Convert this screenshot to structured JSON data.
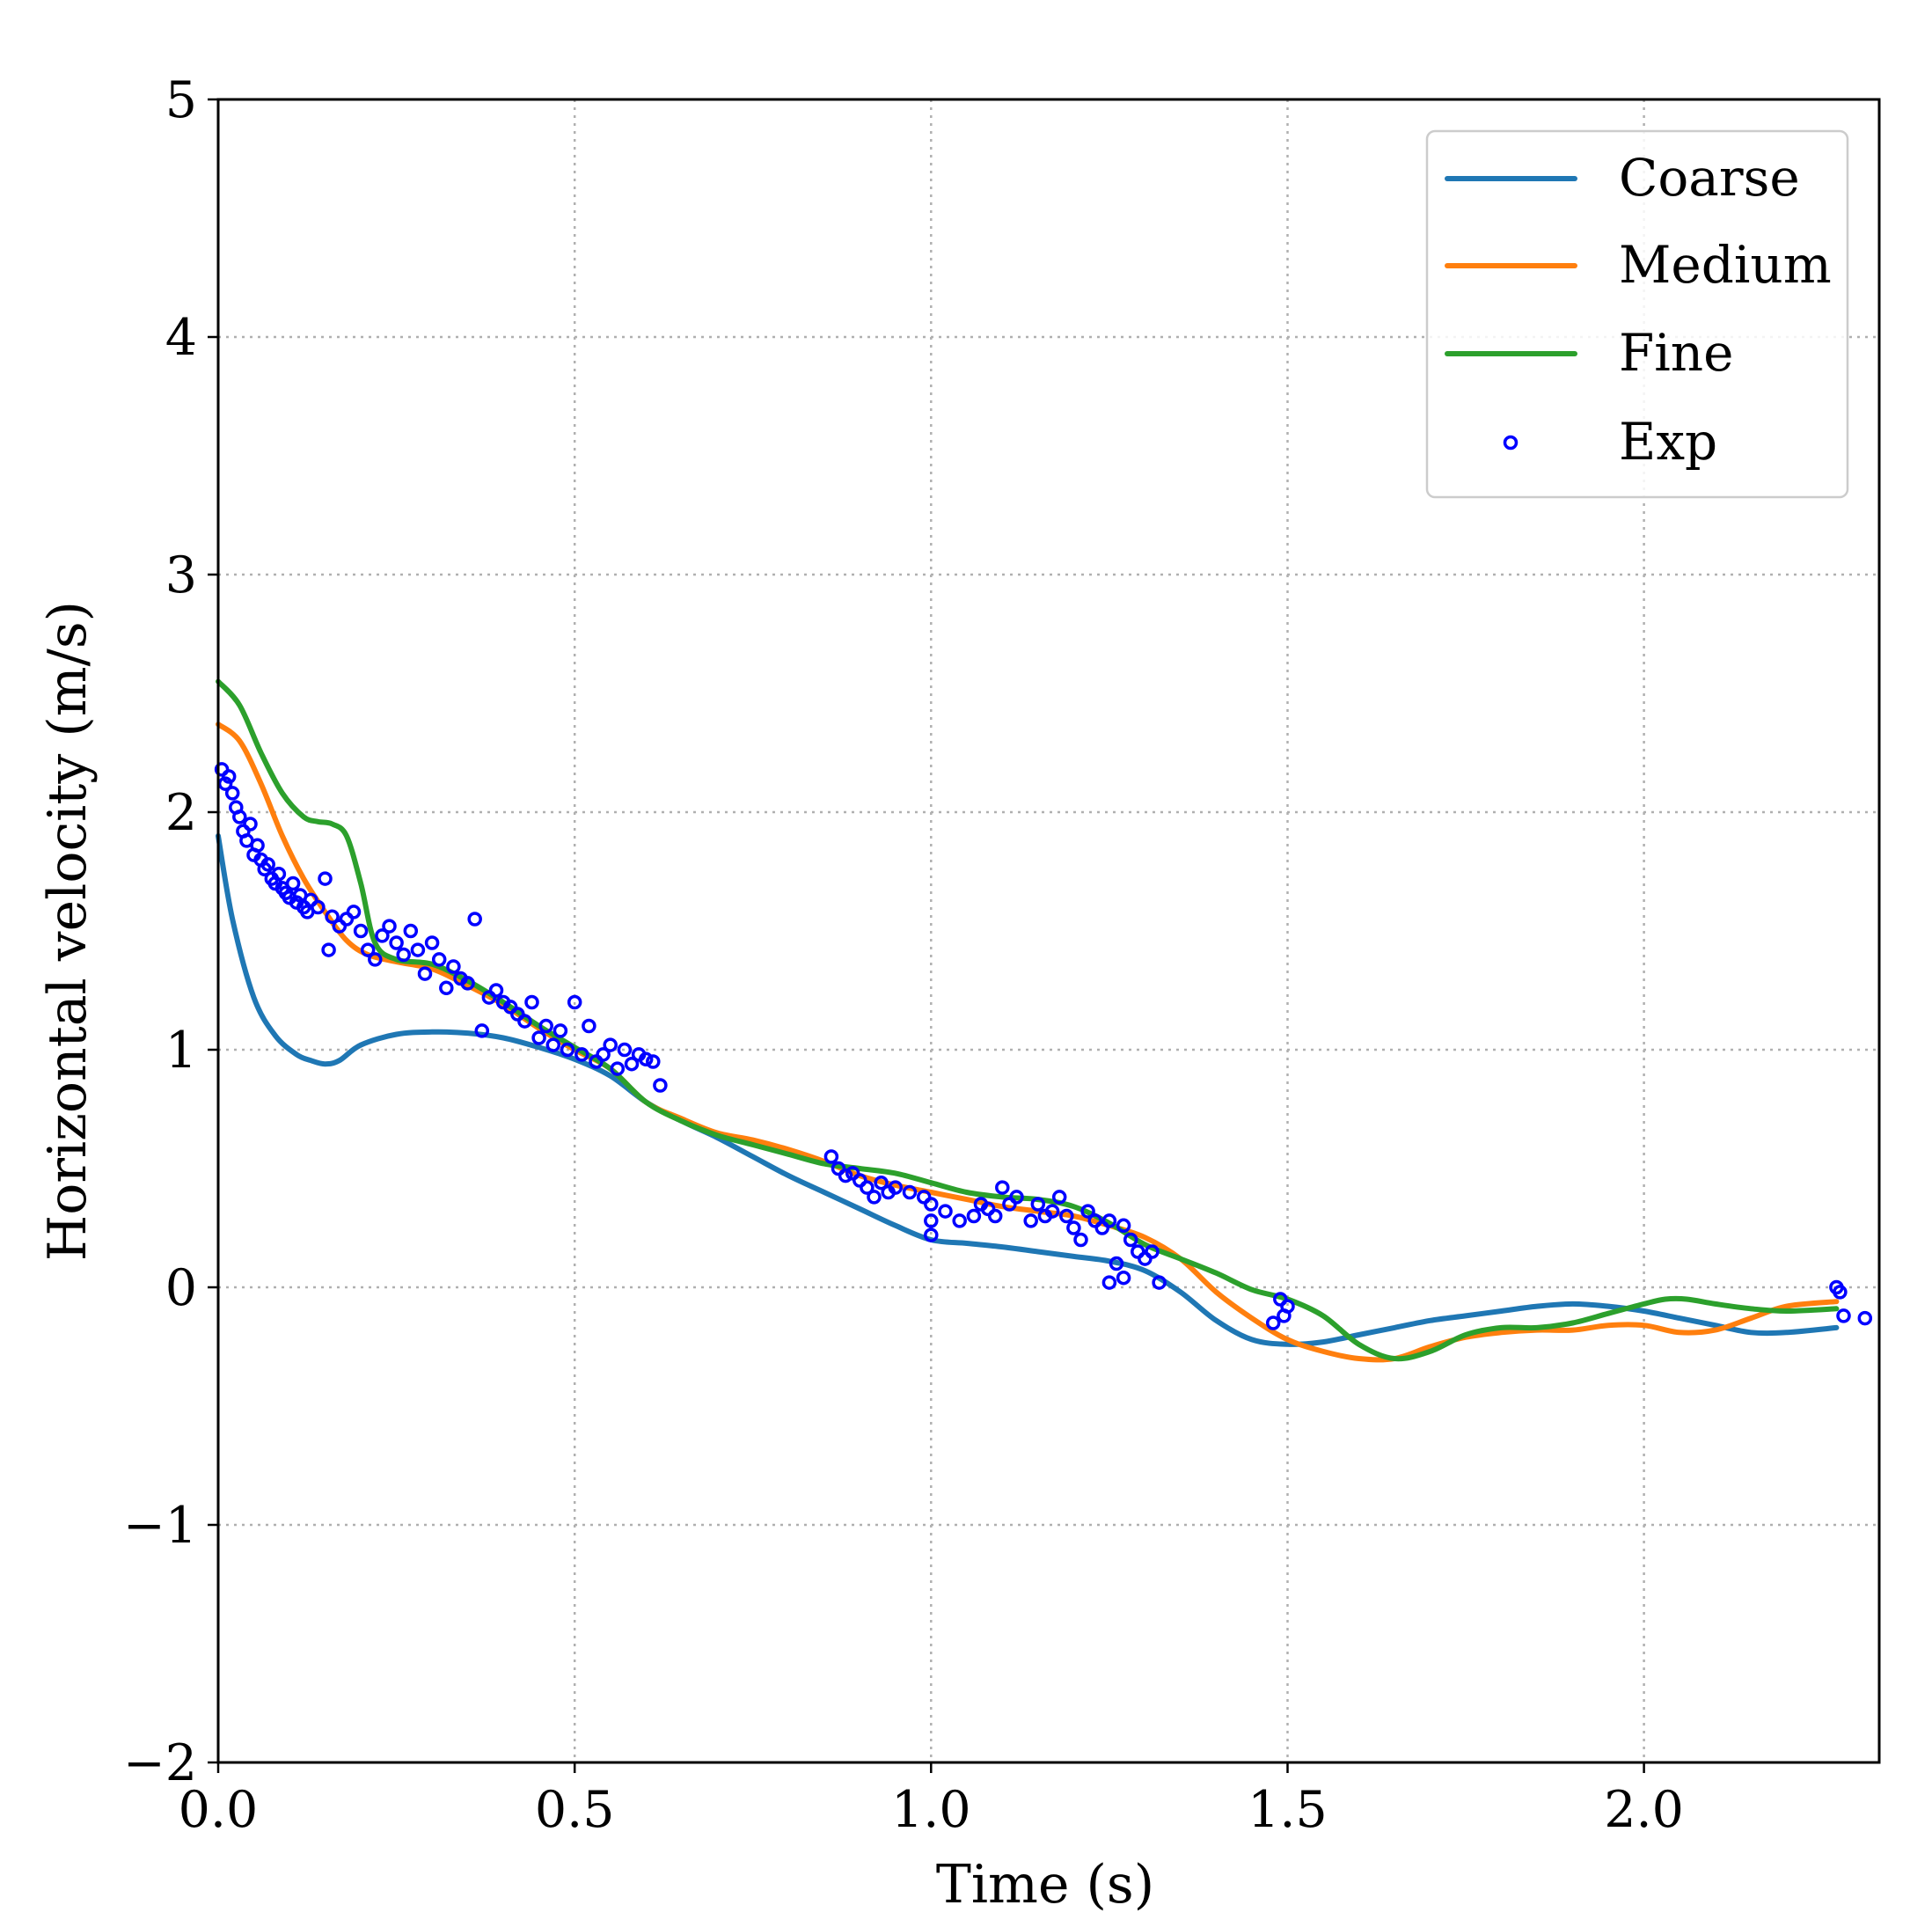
{
  "chart_data": {
    "type": "line",
    "title": "",
    "xlabel": "Time (s)",
    "ylabel": "Horizontal velocity (m/s)",
    "xlim": [
      0.0,
      2.33
    ],
    "ylim": [
      -2,
      5
    ],
    "x_ticks": [
      0.0,
      0.5,
      1.0,
      1.5,
      2.0
    ],
    "x_tick_labels": [
      "0.0",
      "0.5",
      "1.0",
      "1.5",
      "2.0"
    ],
    "y_ticks": [
      -2,
      -1,
      0,
      1,
      2,
      3,
      4,
      5
    ],
    "y_tick_labels": [
      "−2",
      "−1",
      "0",
      "1",
      "2",
      "3",
      "4",
      "5"
    ],
    "grid": true,
    "legend_position": "top-right",
    "series": [
      {
        "name": "Coarse",
        "color": "#1f77b4",
        "style": "line",
        "x": [
          0.0,
          0.02,
          0.05,
          0.08,
          0.11,
          0.13,
          0.15,
          0.17,
          0.2,
          0.25,
          0.3,
          0.35,
          0.4,
          0.45,
          0.5,
          0.55,
          0.6,
          0.65,
          0.7,
          0.75,
          0.8,
          0.85,
          0.9,
          0.95,
          1.0,
          1.05,
          1.1,
          1.15,
          1.2,
          1.25,
          1.3,
          1.35,
          1.4,
          1.45,
          1.5,
          1.55,
          1.6,
          1.65,
          1.7,
          1.75,
          1.8,
          1.85,
          1.9,
          1.95,
          2.0,
          2.05,
          2.1,
          2.15,
          2.2,
          2.27
        ],
        "y": [
          1.9,
          1.55,
          1.22,
          1.06,
          0.98,
          0.955,
          0.94,
          0.955,
          1.02,
          1.065,
          1.075,
          1.07,
          1.05,
          1.01,
          0.96,
          0.89,
          0.78,
          0.7,
          0.63,
          0.55,
          0.47,
          0.4,
          0.33,
          0.26,
          0.2,
          0.185,
          0.17,
          0.15,
          0.13,
          0.11,
          0.07,
          -0.02,
          -0.14,
          -0.22,
          -0.24,
          -0.23,
          -0.2,
          -0.17,
          -0.14,
          -0.12,
          -0.1,
          -0.08,
          -0.07,
          -0.08,
          -0.1,
          -0.13,
          -0.16,
          -0.19,
          -0.19,
          -0.17
        ]
      },
      {
        "name": "Medium",
        "color": "#ff7f0e",
        "style": "line",
        "x": [
          0.0,
          0.03,
          0.06,
          0.09,
          0.12,
          0.15,
          0.18,
          0.21,
          0.25,
          0.3,
          0.35,
          0.4,
          0.45,
          0.5,
          0.55,
          0.6,
          0.65,
          0.7,
          0.75,
          0.8,
          0.85,
          0.9,
          0.95,
          1.0,
          1.05,
          1.1,
          1.15,
          1.2,
          1.25,
          1.3,
          1.35,
          1.4,
          1.45,
          1.5,
          1.55,
          1.6,
          1.65,
          1.7,
          1.75,
          1.8,
          1.85,
          1.9,
          1.95,
          2.0,
          2.05,
          2.1,
          2.15,
          2.2,
          2.27
        ],
        "y": [
          2.37,
          2.3,
          2.12,
          1.9,
          1.72,
          1.58,
          1.46,
          1.4,
          1.37,
          1.34,
          1.27,
          1.19,
          1.09,
          1.0,
          0.92,
          0.78,
          0.71,
          0.65,
          0.62,
          0.58,
          0.53,
          0.47,
          0.43,
          0.4,
          0.37,
          0.34,
          0.32,
          0.3,
          0.26,
          0.21,
          0.12,
          -0.02,
          -0.13,
          -0.22,
          -0.27,
          -0.3,
          -0.3,
          -0.25,
          -0.21,
          -0.19,
          -0.18,
          -0.18,
          -0.16,
          -0.16,
          -0.19,
          -0.18,
          -0.13,
          -0.08,
          -0.06
        ]
      },
      {
        "name": "Fine",
        "color": "#2ca02c",
        "style": "line",
        "x": [
          0.0,
          0.03,
          0.06,
          0.09,
          0.12,
          0.14,
          0.16,
          0.18,
          0.2,
          0.22,
          0.25,
          0.3,
          0.35,
          0.4,
          0.45,
          0.5,
          0.55,
          0.6,
          0.65,
          0.7,
          0.75,
          0.8,
          0.85,
          0.9,
          0.95,
          1.0,
          1.05,
          1.1,
          1.15,
          1.2,
          1.25,
          1.3,
          1.35,
          1.4,
          1.45,
          1.5,
          1.55,
          1.6,
          1.65,
          1.7,
          1.75,
          1.8,
          1.85,
          1.9,
          1.95,
          2.0,
          2.03,
          2.06,
          2.1,
          2.15,
          2.2,
          2.27
        ],
        "y": [
          2.55,
          2.45,
          2.25,
          2.08,
          1.98,
          1.96,
          1.95,
          1.9,
          1.7,
          1.45,
          1.38,
          1.36,
          1.29,
          1.2,
          1.1,
          1.01,
          0.92,
          0.78,
          0.7,
          0.64,
          0.6,
          0.56,
          0.52,
          0.5,
          0.48,
          0.44,
          0.4,
          0.38,
          0.37,
          0.34,
          0.27,
          0.18,
          0.12,
          0.06,
          -0.01,
          -0.05,
          -0.12,
          -0.24,
          -0.3,
          -0.27,
          -0.2,
          -0.17,
          -0.17,
          -0.15,
          -0.11,
          -0.07,
          -0.05,
          -0.05,
          -0.07,
          -0.09,
          -0.1,
          -0.09
        ]
      },
      {
        "name": "Exp",
        "color": "#0000ff",
        "style": "markers",
        "x": [
          0.005,
          0.01,
          0.015,
          0.02,
          0.025,
          0.03,
          0.035,
          0.04,
          0.045,
          0.05,
          0.055,
          0.06,
          0.065,
          0.07,
          0.075,
          0.08,
          0.085,
          0.09,
          0.095,
          0.1,
          0.105,
          0.11,
          0.115,
          0.12,
          0.125,
          0.13,
          0.14,
          0.15,
          0.155,
          0.16,
          0.17,
          0.18,
          0.19,
          0.2,
          0.21,
          0.22,
          0.23,
          0.24,
          0.25,
          0.26,
          0.27,
          0.28,
          0.29,
          0.3,
          0.31,
          0.32,
          0.33,
          0.34,
          0.35,
          0.36,
          0.37,
          0.38,
          0.39,
          0.4,
          0.41,
          0.42,
          0.43,
          0.44,
          0.45,
          0.46,
          0.47,
          0.48,
          0.49,
          0.5,
          0.51,
          0.52,
          0.53,
          0.54,
          0.55,
          0.56,
          0.57,
          0.58,
          0.59,
          0.6,
          0.61,
          0.62,
          0.86,
          0.87,
          0.88,
          0.89,
          0.9,
          0.91,
          0.92,
          0.93,
          0.94,
          0.95,
          0.97,
          0.99,
          1.0,
          1.0,
          1.0,
          1.02,
          1.04,
          1.06,
          1.07,
          1.08,
          1.09,
          1.1,
          1.11,
          1.12,
          1.14,
          1.15,
          1.16,
          1.17,
          1.18,
          1.19,
          1.2,
          1.21,
          1.22,
          1.23,
          1.24,
          1.25,
          1.26,
          1.27,
          1.28,
          1.29,
          1.3,
          1.31,
          1.32,
          1.25,
          1.27,
          1.48,
          1.49,
          1.495,
          1.5,
          2.27,
          2.275,
          2.28,
          2.31
        ],
        "y": [
          2.18,
          2.12,
          2.15,
          2.08,
          2.02,
          1.98,
          1.92,
          1.88,
          1.95,
          1.82,
          1.86,
          1.8,
          1.76,
          1.78,
          1.72,
          1.7,
          1.74,
          1.68,
          1.66,
          1.64,
          1.7,
          1.62,
          1.65,
          1.6,
          1.58,
          1.63,
          1.6,
          1.72,
          1.42,
          1.56,
          1.52,
          1.55,
          1.58,
          1.5,
          1.42,
          1.38,
          1.48,
          1.52,
          1.45,
          1.4,
          1.5,
          1.42,
          1.32,
          1.45,
          1.38,
          1.26,
          1.35,
          1.3,
          1.28,
          1.55,
          1.08,
          1.22,
          1.25,
          1.2,
          1.18,
          1.15,
          1.12,
          1.2,
          1.05,
          1.1,
          1.02,
          1.08,
          1.0,
          1.2,
          0.98,
          1.1,
          0.95,
          0.98,
          1.02,
          0.92,
          1.0,
          0.94,
          0.98,
          0.96,
          0.95,
          0.85,
          0.55,
          0.5,
          0.47,
          0.48,
          0.45,
          0.42,
          0.38,
          0.44,
          0.4,
          0.42,
          0.4,
          0.38,
          0.35,
          0.28,
          0.22,
          0.32,
          0.28,
          0.3,
          0.35,
          0.33,
          0.3,
          0.42,
          0.35,
          0.38,
          0.28,
          0.35,
          0.3,
          0.32,
          0.38,
          0.3,
          0.25,
          0.2,
          0.32,
          0.28,
          0.25,
          0.28,
          0.1,
          0.26,
          0.2,
          0.15,
          0.12,
          0.15,
          0.02,
          0.02,
          0.04,
          -0.15,
          -0.05,
          -0.12,
          -0.08,
          0.0,
          -0.02,
          -0.12,
          -0.13
        ]
      }
    ]
  }
}
